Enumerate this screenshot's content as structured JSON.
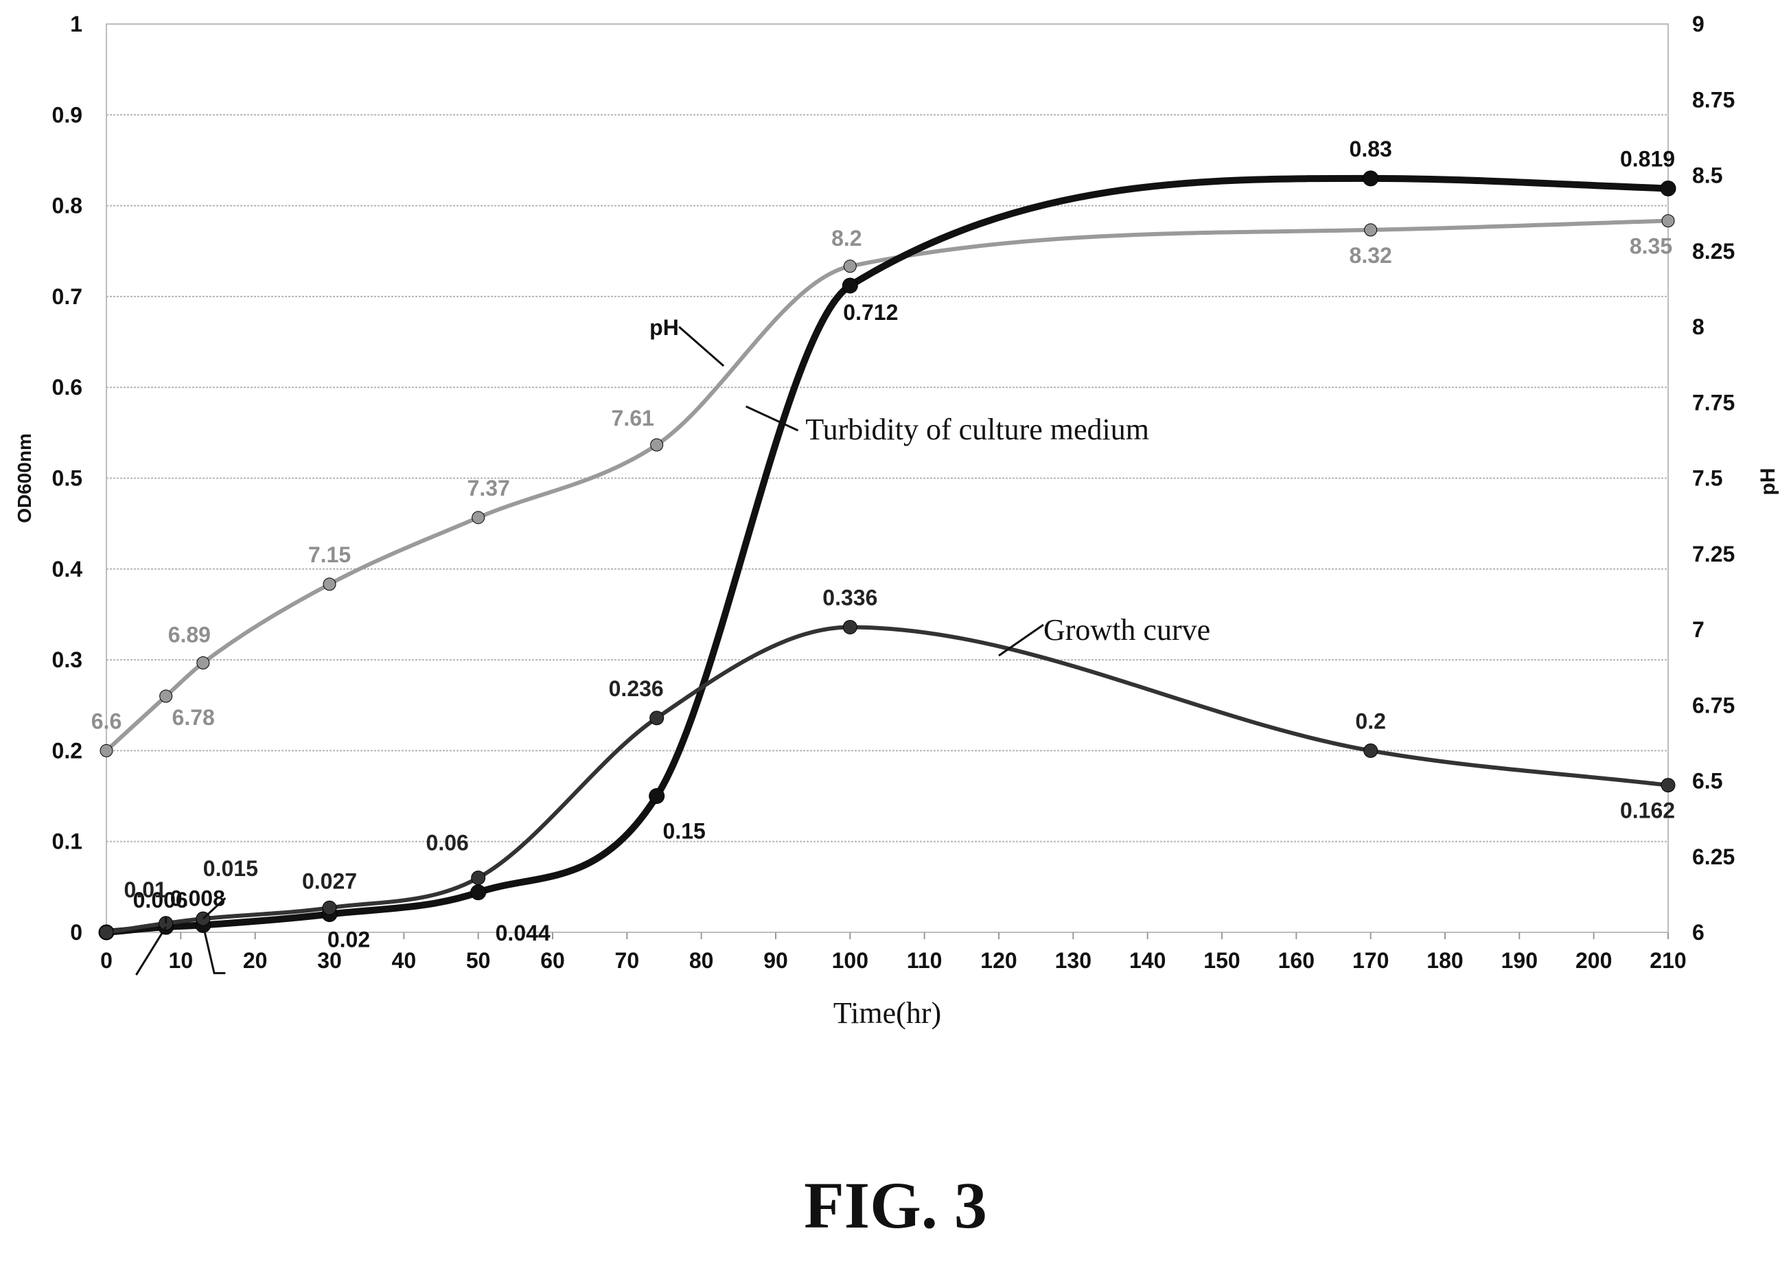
{
  "figure_label": "FIG. 3",
  "chart_data": {
    "type": "line",
    "xlabel": "Time(hr)",
    "ylabel_left": "OD600nm",
    "ylabel_right": "pH",
    "x_ticks": [
      0,
      10,
      20,
      30,
      40,
      50,
      60,
      70,
      80,
      90,
      100,
      110,
      120,
      130,
      140,
      150,
      160,
      170,
      180,
      190,
      200,
      210
    ],
    "xlim": [
      0,
      210
    ],
    "y_left_ticks": [
      "0",
      "0.1",
      "0.2",
      "0.3",
      "0.4",
      "0.5",
      "0.6",
      "0.7",
      "0.8",
      "0.9",
      "1"
    ],
    "ylim_left": [
      0,
      1
    ],
    "y_right_ticks": [
      "6",
      "6.25",
      "6.5",
      "6.75",
      "7",
      "7.25",
      "7.5",
      "7.75",
      "8",
      "8.25",
      "8.5",
      "8.75",
      "9"
    ],
    "ylim_right": [
      6,
      9
    ],
    "grid": "horizontal",
    "colors": {
      "ph": "#9a9a9a",
      "turbidity": "#111111",
      "growth": "#333333"
    },
    "series": [
      {
        "name": "pH",
        "axis": "right",
        "x": [
          0,
          8,
          13,
          30,
          50,
          74,
          100,
          170,
          210
        ],
        "y": [
          6.6,
          6.78,
          6.89,
          7.15,
          7.37,
          7.61,
          8.2,
          8.32,
          8.35
        ],
        "labels": [
          "6.6",
          "6.78",
          "6.89",
          "7.15",
          "7.37",
          "7.61",
          "8.2",
          "8.32",
          "8.35"
        ]
      },
      {
        "name": "Turbidity of culture medium",
        "axis": "left",
        "x": [
          0,
          8,
          13,
          30,
          50,
          74,
          100,
          170,
          210
        ],
        "y": [
          0,
          0.006,
          0.008,
          0.02,
          0.044,
          0.15,
          0.712,
          0.83,
          0.819
        ],
        "labels": [
          "",
          "0.006",
          "0.008",
          "0.02",
          "0.044",
          "0.15",
          "0.712",
          "0.83",
          "0.819"
        ]
      },
      {
        "name": "Growth curve",
        "axis": "left",
        "x": [
          0,
          8,
          13,
          30,
          50,
          74,
          100,
          170,
          210
        ],
        "y": [
          0,
          0.01,
          0.015,
          0.027,
          0.06,
          0.236,
          0.336,
          0.2,
          0.162
        ],
        "labels": [
          "",
          "0.01",
          "0.015",
          "0.027",
          "0.06",
          "0.236",
          "0.336",
          "0.2",
          "0.162"
        ]
      }
    ]
  }
}
